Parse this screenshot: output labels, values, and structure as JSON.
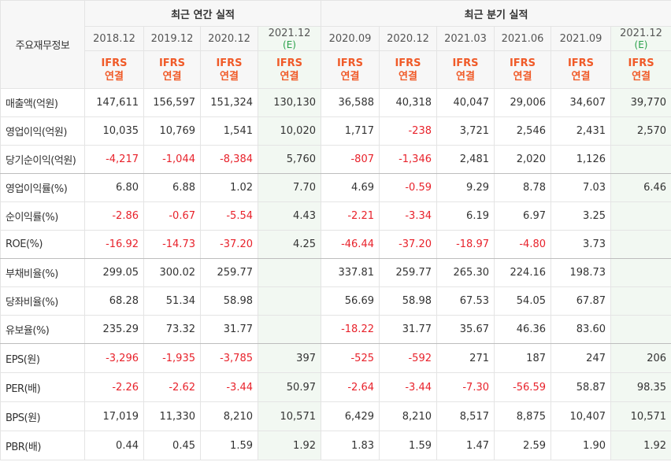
{
  "header": {
    "corner_label": "주요재무정보",
    "annual_group_label": "최근 연간 실적",
    "quarter_group_label": "최근 분기 실적",
    "ifrs_label_line1": "IFRS",
    "ifrs_label_line2": "연결",
    "annual_periods": [
      {
        "label": "2018.12",
        "estimate": ""
      },
      {
        "label": "2019.12",
        "estimate": ""
      },
      {
        "label": "2020.12",
        "estimate": ""
      },
      {
        "label": "2021.12",
        "estimate": "(E)"
      }
    ],
    "quarter_periods": [
      {
        "label": "2020.09",
        "estimate": ""
      },
      {
        "label": "2020.12",
        "estimate": ""
      },
      {
        "label": "2021.03",
        "estimate": ""
      },
      {
        "label": "2021.06",
        "estimate": ""
      },
      {
        "label": "2021.09",
        "estimate": ""
      },
      {
        "label": "2021.12",
        "estimate": "(E)"
      }
    ]
  },
  "rows": [
    {
      "label": "매출액(억원)",
      "values": [
        "147,611",
        "156,597",
        "151,324",
        "130,130",
        "36,588",
        "40,318",
        "40,047",
        "29,006",
        "34,607",
        "39,770"
      ]
    },
    {
      "label": "영업이익(억원)",
      "values": [
        "10,035",
        "10,769",
        "1,541",
        "10,020",
        "1,717",
        "-238",
        "3,721",
        "2,546",
        "2,431",
        "2,570"
      ]
    },
    {
      "label": "당기순이익(억원)",
      "values": [
        "-4,217",
        "-1,044",
        "-8,384",
        "5,760",
        "-807",
        "-1,346",
        "2,481",
        "2,020",
        "1,126",
        ""
      ]
    },
    {
      "label": "영업이익률(%)",
      "values": [
        "6.80",
        "6.88",
        "1.02",
        "7.70",
        "4.69",
        "-0.59",
        "9.29",
        "8.78",
        "7.03",
        "6.46"
      ]
    },
    {
      "label": "순이익률(%)",
      "values": [
        "-2.86",
        "-0.67",
        "-5.54",
        "4.43",
        "-2.21",
        "-3.34",
        "6.19",
        "6.97",
        "3.25",
        ""
      ]
    },
    {
      "label": "ROE(%)",
      "values": [
        "-16.92",
        "-14.73",
        "-37.20",
        "4.25",
        "-46.44",
        "-37.20",
        "-18.97",
        "-4.80",
        "3.73",
        ""
      ]
    },
    {
      "label": "부채비율(%)",
      "values": [
        "299.05",
        "300.02",
        "259.77",
        "",
        "337.81",
        "259.77",
        "265.30",
        "224.16",
        "198.73",
        ""
      ]
    },
    {
      "label": "당좌비율(%)",
      "values": [
        "68.28",
        "51.34",
        "58.98",
        "",
        "56.69",
        "58.98",
        "67.53",
        "54.05",
        "67.87",
        ""
      ]
    },
    {
      "label": "유보율(%)",
      "values": [
        "235.29",
        "73.32",
        "31.77",
        "",
        "-18.22",
        "31.77",
        "35.67",
        "46.36",
        "83.60",
        ""
      ]
    },
    {
      "label": "EPS(원)",
      "values": [
        "-3,296",
        "-1,935",
        "-3,785",
        "397",
        "-525",
        "-592",
        "271",
        "187",
        "247",
        "206"
      ]
    },
    {
      "label": "PER(배)",
      "values": [
        "-2.26",
        "-2.62",
        "-3.44",
        "50.97",
        "-2.64",
        "-3.44",
        "-7.30",
        "-56.59",
        "58.87",
        "98.35"
      ]
    },
    {
      "label": "BPS(원)",
      "values": [
        "17,019",
        "11,330",
        "8,210",
        "10,571",
        "6,429",
        "8,210",
        "8,517",
        "8,875",
        "10,407",
        "10,571"
      ]
    },
    {
      "label": "PBR(배)",
      "values": [
        "0.44",
        "0.45",
        "1.59",
        "1.92",
        "1.83",
        "1.59",
        "1.47",
        "2.59",
        "1.90",
        "1.92"
      ]
    }
  ],
  "colors": {
    "negative": "#e8222b",
    "ifrs": "#f05a28",
    "estimate_text": "#2aa14a",
    "estimate_bg": "#f2f8f2",
    "header_bg": "#f7f7f7",
    "grid": "#e4e4e4"
  }
}
